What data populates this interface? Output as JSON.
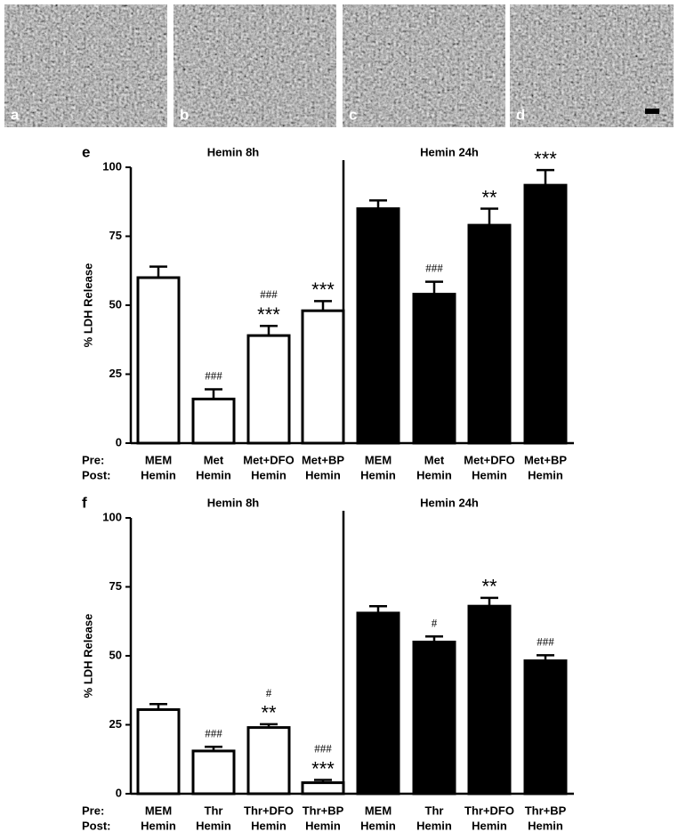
{
  "micrographs": [
    {
      "label": "a"
    },
    {
      "label": "b"
    },
    {
      "label": "c"
    },
    {
      "label": "d"
    }
  ],
  "chart_data": [
    {
      "type": "bar",
      "panel_label": "e",
      "group_titles": [
        "Hemin 8h",
        "Hemin 24h"
      ],
      "ylabel": "% LDH Release",
      "row_labels": [
        "Pre:",
        "Post:"
      ],
      "categories": [
        "MEM",
        "Met",
        "Met+DFO",
        "Met+BP",
        "MEM",
        "Met",
        "Met+DFO",
        "Met+BP"
      ],
      "post_labels": [
        "Hemin",
        "Hemin",
        "Hemin",
        "Hemin",
        "Hemin",
        "Hemin",
        "Hemin",
        "Hemin"
      ],
      "values": [
        60,
        16,
        39,
        48,
        85,
        54,
        79,
        93.5
      ],
      "errors": [
        4,
        3.5,
        3.5,
        3.5,
        3,
        4.5,
        6,
        5.5
      ],
      "bar_colors": [
        "#ffffff",
        "#ffffff",
        "#ffffff",
        "#ffffff",
        "#000000",
        "#000000",
        "#000000",
        "#000000"
      ],
      "annotations": [
        null,
        [
          "###"
        ],
        [
          "###",
          "***"
        ],
        [
          "***"
        ],
        null,
        [
          "###"
        ],
        [
          "**"
        ],
        [
          "***"
        ]
      ],
      "ylim": [
        0,
        100
      ],
      "yticks": [
        0,
        25,
        50,
        75,
        100
      ]
    },
    {
      "type": "bar",
      "panel_label": "f",
      "group_titles": [
        "Hemin 8h",
        "Hemin 24h"
      ],
      "ylabel": "% LDH Release",
      "row_labels": [
        "Pre:",
        "Post:"
      ],
      "categories": [
        "MEM",
        "Thr",
        "Thr+DFO",
        "Thr+BP",
        "MEM",
        "Thr",
        "Thr+DFO",
        "Thr+BP"
      ],
      "post_labels": [
        "Hemin",
        "Hemin",
        "Hemin",
        "Hemin",
        "Hemin",
        "Hemin",
        "Hemin",
        "Hemin"
      ],
      "values": [
        30.5,
        15.5,
        24,
        4,
        65.5,
        55,
        68,
        48.2
      ],
      "errors": [
        2,
        1.5,
        1.2,
        1,
        2.5,
        2,
        3,
        2
      ],
      "bar_colors": [
        "#ffffff",
        "#ffffff",
        "#ffffff",
        "#ffffff",
        "#000000",
        "#000000",
        "#000000",
        "#000000"
      ],
      "annotations": [
        null,
        [
          "###"
        ],
        [
          "#",
          "**"
        ],
        [
          "###",
          "***"
        ],
        null,
        [
          "#"
        ],
        [
          "**"
        ],
        [
          "###"
        ]
      ],
      "ylim": [
        0,
        100
      ],
      "yticks": [
        0,
        25,
        50,
        75,
        100
      ]
    }
  ]
}
